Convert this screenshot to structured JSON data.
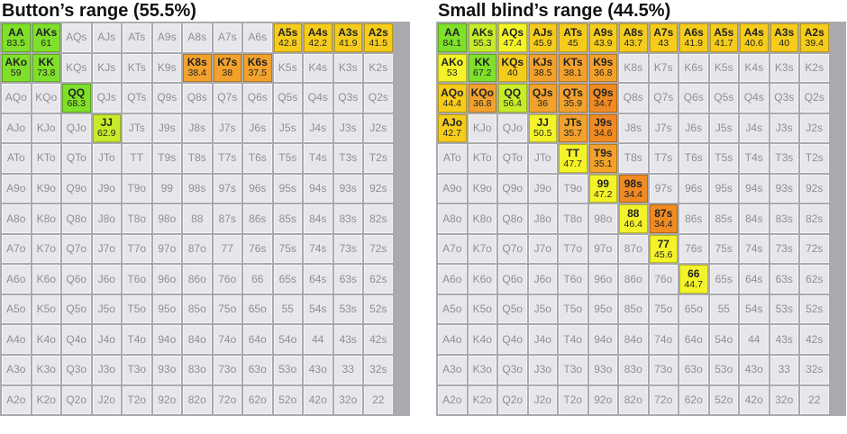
{
  "ranks": [
    "A",
    "K",
    "Q",
    "J",
    "T",
    "9",
    "8",
    "7",
    "6",
    "5",
    "4",
    "3",
    "2"
  ],
  "colors": {
    "bright_green": "#7fe02a",
    "yellow_green": "#c8ec2a",
    "yellow": "#f4f32a",
    "amber": "#f5cc1c",
    "orange": "#f2a22c",
    "dark_orange": "#ef8b22",
    "empty": "#e7e7eb"
  },
  "panels": [
    {
      "id": "button",
      "title": "Button’s range (55.5%)",
      "cells": {
        "AA": {
          "pct": "83.5",
          "color": "bright_green"
        },
        "AKs": {
          "pct": "61",
          "color": "bright_green"
        },
        "AKo": {
          "pct": "59",
          "color": "bright_green"
        },
        "KK": {
          "pct": "73.8",
          "color": "bright_green"
        },
        "QQ": {
          "pct": "68.3",
          "color": "bright_green"
        },
        "JJ": {
          "pct": "62.9",
          "color": "yellow_green"
        },
        "A5s": {
          "pct": "42.8",
          "color": "amber"
        },
        "A4s": {
          "pct": "42.2",
          "color": "amber"
        },
        "A3s": {
          "pct": "41.9",
          "color": "amber"
        },
        "A2s": {
          "pct": "41.5",
          "color": "amber"
        },
        "K8s": {
          "pct": "38.4",
          "color": "orange"
        },
        "K7s": {
          "pct": "38",
          "color": "orange"
        },
        "K6s": {
          "pct": "37.5",
          "color": "orange"
        }
      }
    },
    {
      "id": "small-blind",
      "title": "Small blind’s range (44.5%)",
      "cells": {
        "AA": {
          "pct": "84.1",
          "color": "bright_green"
        },
        "AKs": {
          "pct": "55.3",
          "color": "yellow_green"
        },
        "AQs": {
          "pct": "47.4",
          "color": "yellow"
        },
        "AJs": {
          "pct": "45.9",
          "color": "amber"
        },
        "ATs": {
          "pct": "45",
          "color": "amber"
        },
        "A9s": {
          "pct": "43.9",
          "color": "amber"
        },
        "A8s": {
          "pct": "43.7",
          "color": "amber"
        },
        "A7s": {
          "pct": "43",
          "color": "amber"
        },
        "A6s": {
          "pct": "41.9",
          "color": "amber"
        },
        "A5s": {
          "pct": "41.7",
          "color": "amber"
        },
        "A4s": {
          "pct": "40.6",
          "color": "amber"
        },
        "A3s": {
          "pct": "40",
          "color": "amber"
        },
        "A2s": {
          "pct": "39.4",
          "color": "amber"
        },
        "AKo": {
          "pct": "53",
          "color": "yellow"
        },
        "KK": {
          "pct": "67.2",
          "color": "bright_green"
        },
        "KQs": {
          "pct": "40",
          "color": "amber"
        },
        "KJs": {
          "pct": "38.5",
          "color": "orange"
        },
        "KTs": {
          "pct": "38.1",
          "color": "orange"
        },
        "K9s": {
          "pct": "36.8",
          "color": "orange"
        },
        "AQo": {
          "pct": "44.4",
          "color": "amber"
        },
        "KQo": {
          "pct": "36.8",
          "color": "orange"
        },
        "QQ": {
          "pct": "56.4",
          "color": "yellow_green"
        },
        "QJs": {
          "pct": "36",
          "color": "orange"
        },
        "QTs": {
          "pct": "35.9",
          "color": "orange"
        },
        "Q9s": {
          "pct": "34.7",
          "color": "dark_orange"
        },
        "AJo": {
          "pct": "42.7",
          "color": "amber"
        },
        "JJ": {
          "pct": "50.5",
          "color": "yellow"
        },
        "JTs": {
          "pct": "35.7",
          "color": "orange"
        },
        "J9s": {
          "pct": "34.6",
          "color": "dark_orange"
        },
        "TT": {
          "pct": "47.7",
          "color": "yellow"
        },
        "T9s": {
          "pct": "35.1",
          "color": "orange"
        },
        "99": {
          "pct": "47.2",
          "color": "yellow"
        },
        "98s": {
          "pct": "34.4",
          "color": "dark_orange"
        },
        "88": {
          "pct": "46.4",
          "color": "yellow"
        },
        "87s": {
          "pct": "34.4",
          "color": "dark_orange"
        },
        "77": {
          "pct": "45.6",
          "color": "yellow"
        },
        "66": {
          "pct": "44.7",
          "color": "yellow"
        }
      }
    }
  ]
}
